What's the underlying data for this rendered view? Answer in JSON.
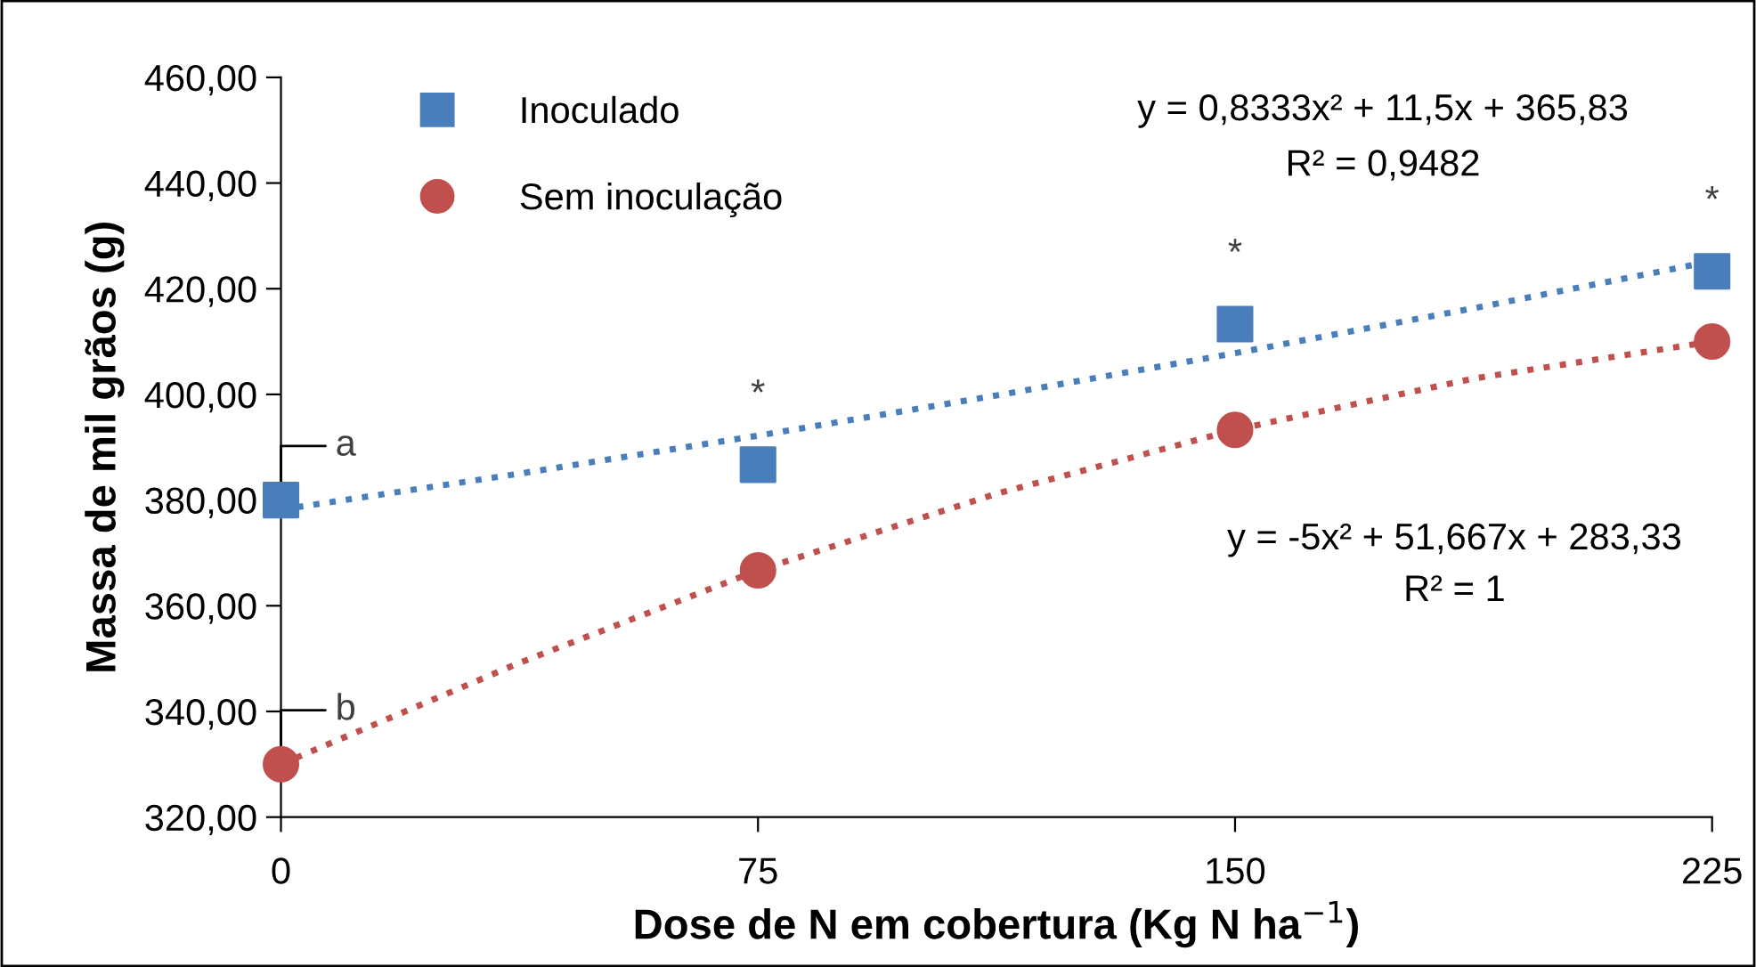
{
  "chart_data": {
    "type": "scatter",
    "xlabel": "Dose de N em cobertura (Kg N ha$^{−1}$)",
    "ylabel": "Massa de mil grãos (g)",
    "x": [
      0,
      75,
      150,
      225
    ],
    "series": [
      {
        "name": "Inoculado",
        "color": "#4a7ebb",
        "marker": "square",
        "values": [
          380,
          386.7,
          413.3,
          423.3
        ]
      },
      {
        "name": "Sem inoculação",
        "color": "#c0504d",
        "marker": "circle",
        "values": [
          330,
          366.7,
          393.3,
          410
        ]
      },
      {
        "type": "line",
        "color": "#4a7ebb",
        "line_style": "dotted",
        "marker": "none",
        "x": [
          0,
          37.5,
          75,
          112.5,
          150,
          187.5,
          225
        ],
        "values": [
          378.2,
          385.0,
          392.2,
          399.8,
          407.8,
          416.3,
          425.2
        ]
      },
      {
        "type": "line",
        "color": "#c0504d",
        "line_style": "dotted",
        "marker": "none",
        "x": [
          0,
          37.5,
          75,
          112.5,
          150,
          187.5,
          225
        ],
        "values": [
          330,
          349.2,
          366.7,
          381.2,
          393.3,
          403.0,
          410
        ]
      }
    ],
    "xlim": [
      0,
      225
    ],
    "xticks": [
      0,
      75,
      150,
      225
    ],
    "ylim": [
      320,
      460
    ],
    "yticks": [
      {
        "value": 320,
        "label": "320,00"
      },
      {
        "value": 340,
        "label": "340,00"
      },
      {
        "value": 360,
        "label": "360,00"
      },
      {
        "value": 380,
        "label": "380,00"
      },
      {
        "value": 400,
        "label": "400,00"
      },
      {
        "value": 420,
        "label": "420,00"
      },
      {
        "value": 440,
        "label": "440,00"
      },
      {
        "value": 460,
        "label": "460,00"
      }
    ],
    "grid": false,
    "legend": "top left",
    "annotations": [
      "y = 0,8333x² + 11,5x + 365,83",
      "R² = 0,9482",
      "y = -5x² + 51,667x + 283,33",
      "R² = 1",
      {
        "text": "*",
        "x": 75,
        "y": 386.7
      },
      {
        "text": "*",
        "x": 150,
        "y": 413.3
      },
      {
        "text": "*",
        "x": 225,
        "y": 423.3
      },
      {
        "text": "a",
        "x": 0,
        "y": 380
      },
      {
        "text": "b",
        "x": 0,
        "y": 330
      }
    ]
  }
}
